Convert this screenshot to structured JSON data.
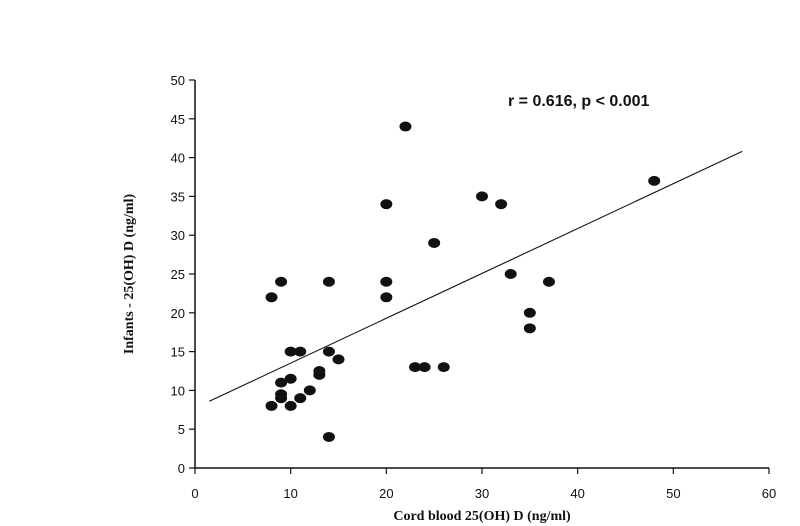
{
  "chart_data": {
    "type": "scatter",
    "xlabel": "Cord blood 25(OH) D (ng/ml)",
    "ylabel": "Infants - 25(OH)  D (ng/ml)",
    "annotation": "r = 0.616,  p < 0.001",
    "xlim": [
      0,
      60
    ],
    "ylim": [
      0,
      50
    ],
    "xticks": [
      0,
      10,
      20,
      30,
      40,
      50,
      60
    ],
    "yticks": [
      0,
      5,
      10,
      15,
      20,
      25,
      30,
      35,
      40,
      45,
      50
    ],
    "grid": false,
    "legend": "none",
    "colors": {
      "points": "#111111",
      "line": "#111111",
      "axes": "#111111"
    },
    "points": [
      {
        "x": 8,
        "y": 22
      },
      {
        "x": 9,
        "y": 24
      },
      {
        "x": 8,
        "y": 8
      },
      {
        "x": 9,
        "y": 9
      },
      {
        "x": 9,
        "y": 9.5
      },
      {
        "x": 9,
        "y": 11
      },
      {
        "x": 10,
        "y": 11.5
      },
      {
        "x": 10,
        "y": 8
      },
      {
        "x": 10,
        "y": 15
      },
      {
        "x": 11,
        "y": 15
      },
      {
        "x": 11,
        "y": 9
      },
      {
        "x": 12,
        "y": 10
      },
      {
        "x": 13,
        "y": 12
      },
      {
        "x": 13,
        "y": 12.5
      },
      {
        "x": 14,
        "y": 15
      },
      {
        "x": 14,
        "y": 24
      },
      {
        "x": 14,
        "y": 4
      },
      {
        "x": 15,
        "y": 14
      },
      {
        "x": 20,
        "y": 34
      },
      {
        "x": 20,
        "y": 24
      },
      {
        "x": 20,
        "y": 22
      },
      {
        "x": 22,
        "y": 44
      },
      {
        "x": 23,
        "y": 13
      },
      {
        "x": 24,
        "y": 13
      },
      {
        "x": 25,
        "y": 29
      },
      {
        "x": 26,
        "y": 13
      },
      {
        "x": 30,
        "y": 35
      },
      {
        "x": 32,
        "y": 34
      },
      {
        "x": 33,
        "y": 25
      },
      {
        "x": 35,
        "y": 20
      },
      {
        "x": 35,
        "y": 18
      },
      {
        "x": 37,
        "y": 24
      },
      {
        "x": 48,
        "y": 37
      }
    ],
    "trendline": {
      "x1": 1.5,
      "y1": 8.6,
      "x2": 57.2,
      "y2": 40.8
    }
  }
}
